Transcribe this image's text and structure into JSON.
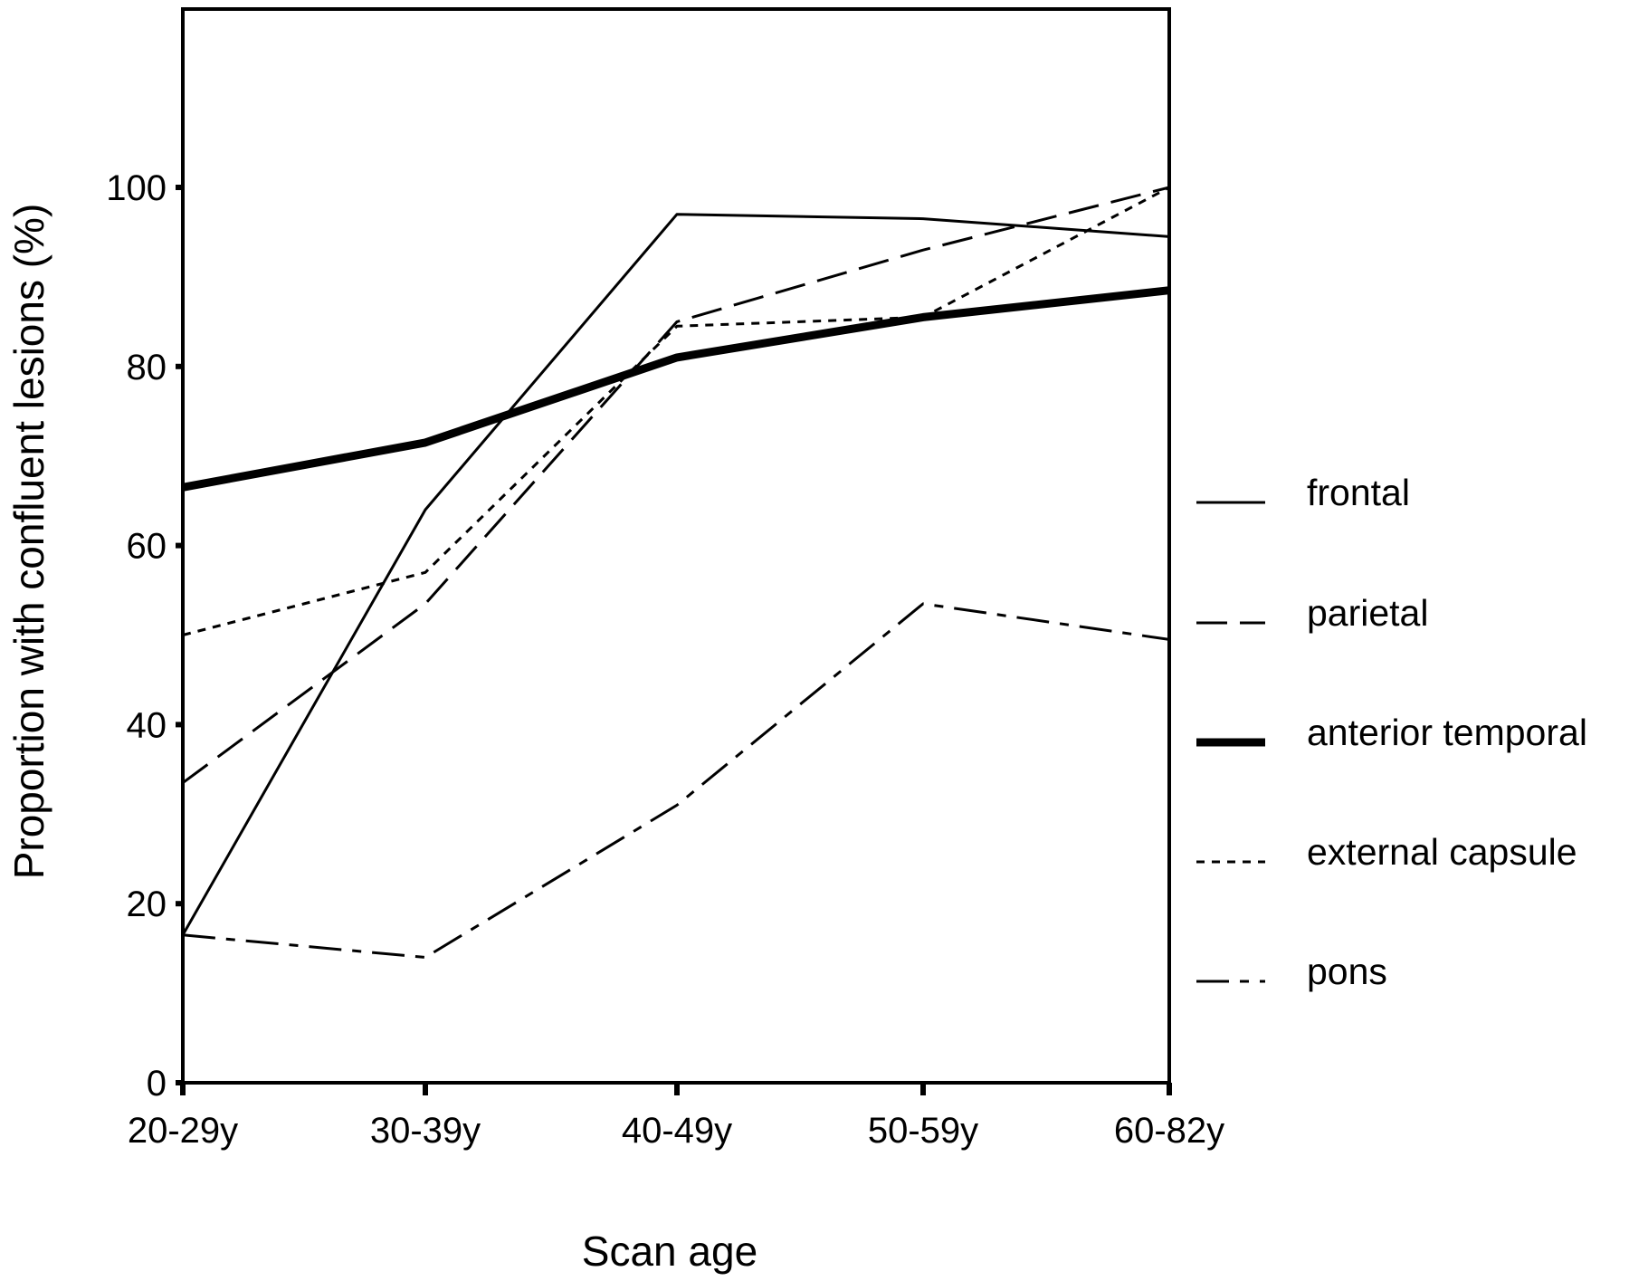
{
  "chart_data": {
    "type": "line",
    "title": "",
    "xlabel": "Scan age",
    "ylabel": "Proportion with confluent lesions (%)",
    "categories": [
      "20-29y",
      "30-39y",
      "40-49y",
      "50-59y",
      "60-82y"
    ],
    "y_ticks": [
      "0",
      "20",
      "40",
      "60",
      "80",
      "100"
    ],
    "ylim": [
      0,
      120
    ],
    "grid": false,
    "legend_position": "right",
    "series": [
      {
        "name": "frontal",
        "values": [
          16.5,
          64,
          97,
          96.5,
          94.5
        ],
        "style": "solid",
        "width": "thin"
      },
      {
        "name": "parietal",
        "values": [
          33.5,
          53.5,
          85,
          93,
          100
        ],
        "style": "long-dash",
        "width": "thin"
      },
      {
        "name": "anterior temporal",
        "values": [
          66.5,
          71.5,
          81,
          85.5,
          88.5
        ],
        "style": "solid",
        "width": "thick"
      },
      {
        "name": "external capsule",
        "values": [
          50,
          57,
          84.5,
          85.5,
          100
        ],
        "style": "short-dash",
        "width": "thin"
      },
      {
        "name": "pons",
        "values": [
          16.5,
          14,
          31,
          53.5,
          49.5
        ],
        "style": "dash-dot",
        "width": "thin"
      }
    ],
    "line_color": "#000000"
  }
}
